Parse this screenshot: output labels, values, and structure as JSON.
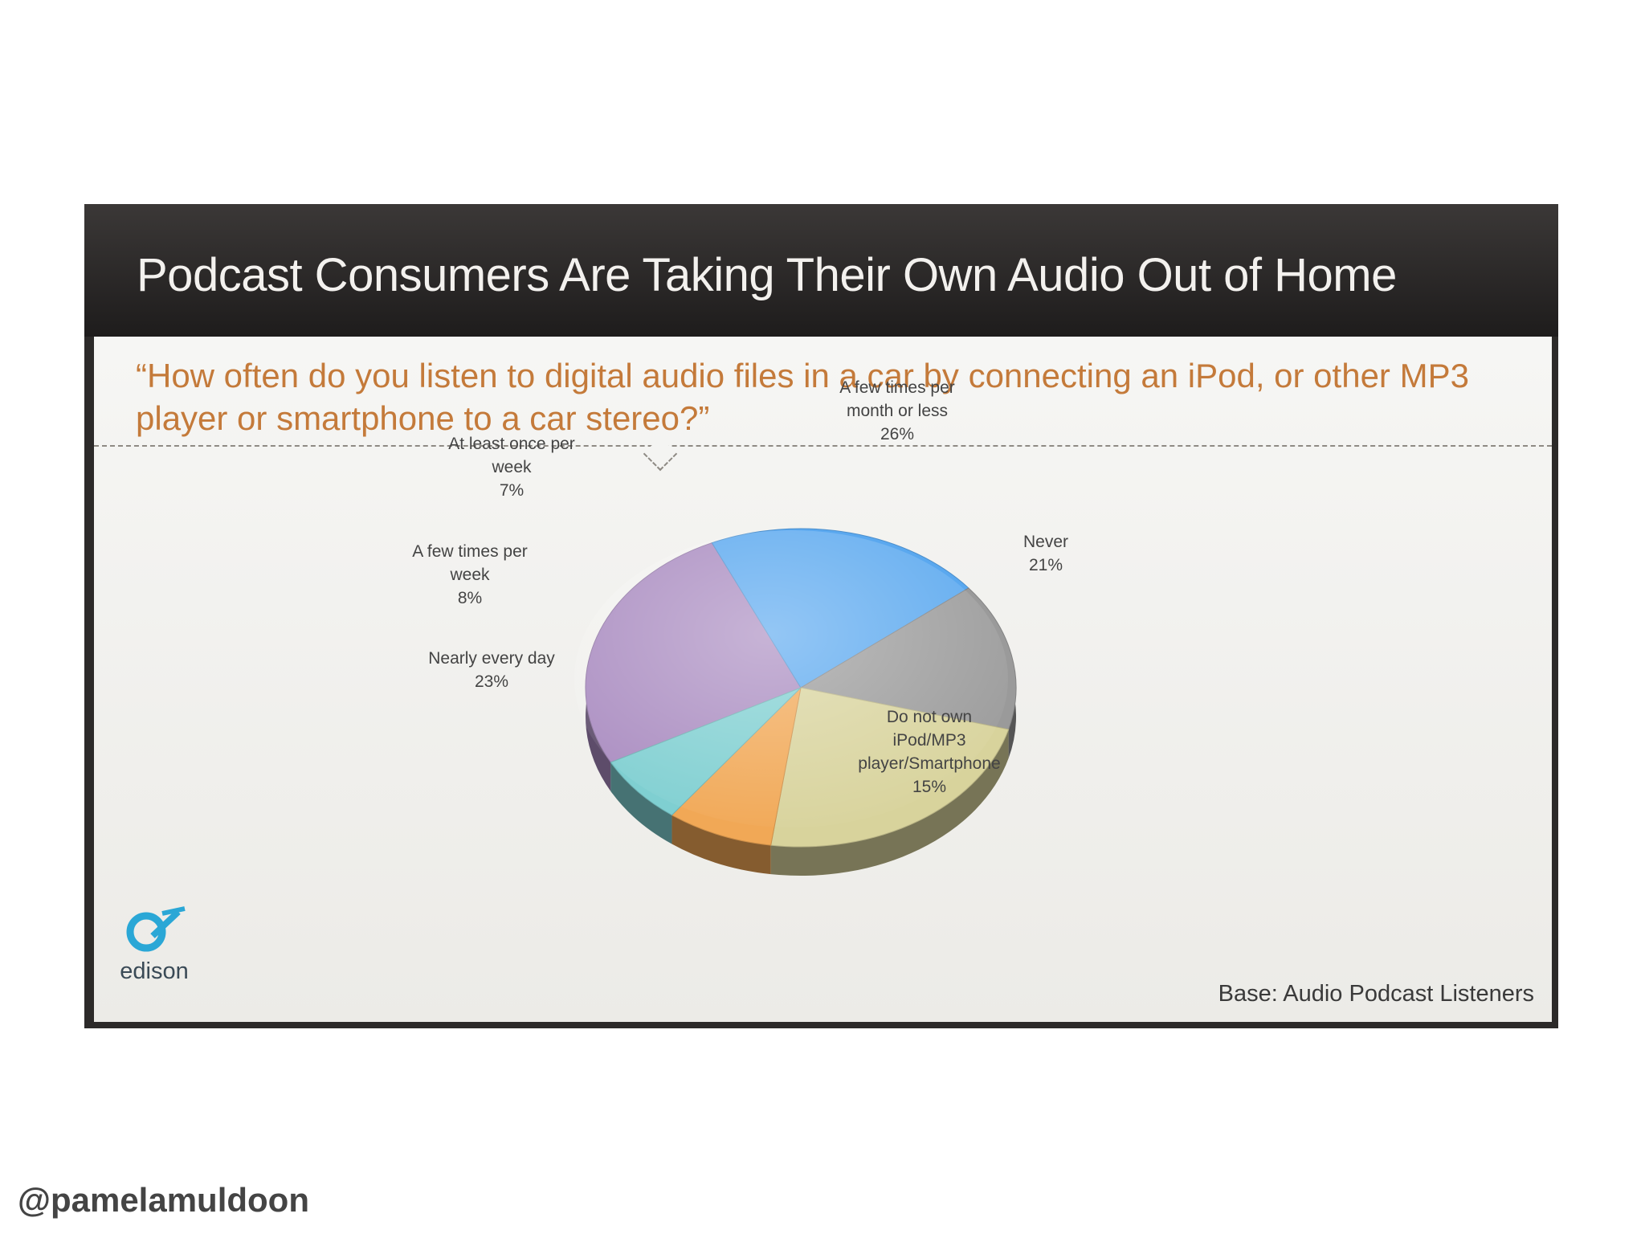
{
  "slide": {
    "title": "Podcast Consumers Are Taking Their Own Audio Out of Home",
    "question": "“How often do you listen to digital audio files in a car by connecting an iPod, or other MP3 player or smartphone to a car stereo?”",
    "base_note": "Base: Audio Podcast Listeners",
    "logo_text": "edison"
  },
  "watermark": "@pamelamuldoon",
  "chart_data": {
    "type": "pie",
    "title": "",
    "slices": [
      {
        "label_lines": [
          "A few times per",
          "month or less"
        ],
        "label": "A few times per month or less",
        "value": 26,
        "value_label": "26%",
        "color": "#a98bc0"
      },
      {
        "label_lines": [
          "Never"
        ],
        "label": "Never",
        "value": 21,
        "value_label": "21%",
        "color": "#5aa8ef"
      },
      {
        "label_lines": [
          "Do not own",
          "iPod/MP3",
          "player/Smartphone"
        ],
        "label": "Do not own iPod/MP3 player/Smartphone",
        "value": 15,
        "value_label": "15%",
        "color": "#9a9a9a"
      },
      {
        "label_lines": [
          "Nearly every day"
        ],
        "label": "Nearly every day",
        "value": 23,
        "value_label": "23%",
        "color": "#d8d39c"
      },
      {
        "label_lines": [
          "A few times per",
          "week"
        ],
        "label": "A few times per week",
        "value": 8,
        "value_label": "8%",
        "color": "#f1a856"
      },
      {
        "label_lines": [
          "At least once per",
          "week"
        ],
        "label": "At least once per week",
        "value": 7,
        "value_label": "7%",
        "color": "#7fcfd1"
      }
    ]
  }
}
